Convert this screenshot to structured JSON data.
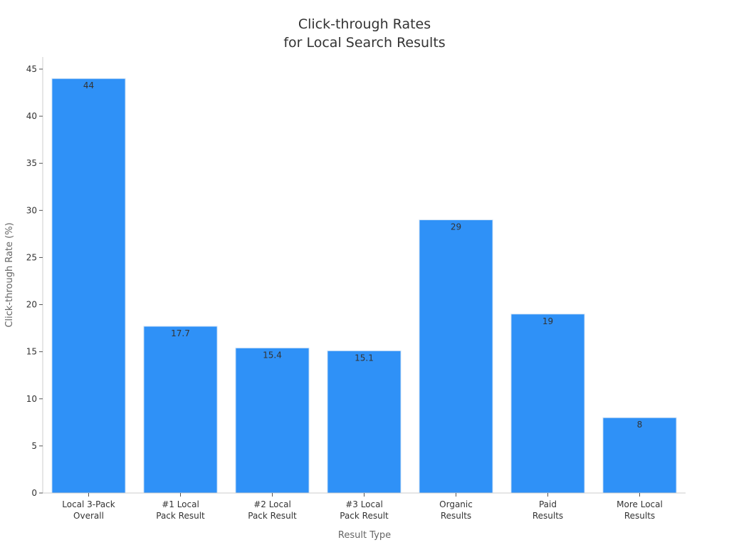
{
  "chart_data": {
    "type": "bar",
    "title_lines": [
      "Click-through Rates",
      "for Local Search Results"
    ],
    "xlabel": "Result Type",
    "ylabel": "Click-through Rate (%)",
    "categories": [
      [
        "Local 3-Pack",
        "Overall"
      ],
      [
        "#1 Local",
        "Pack Result"
      ],
      [
        "#2 Local",
        "Pack Result"
      ],
      [
        "#3 Local",
        "Pack Result"
      ],
      [
        "Organic",
        "Results"
      ],
      [
        "Paid",
        "Results"
      ],
      [
        "More Local",
        "Results"
      ]
    ],
    "values": [
      44,
      17.7,
      15.4,
      15.1,
      29,
      19,
      8
    ],
    "data_labels": [
      "44",
      "17.7",
      "15.4",
      "15.1",
      "29",
      "19",
      "8"
    ],
    "ylim": [
      0,
      45
    ],
    "yticks": [
      0,
      5,
      10,
      15,
      20,
      25,
      30,
      35,
      40,
      45
    ],
    "bar_color": "#2f91f7",
    "grid": false
  }
}
